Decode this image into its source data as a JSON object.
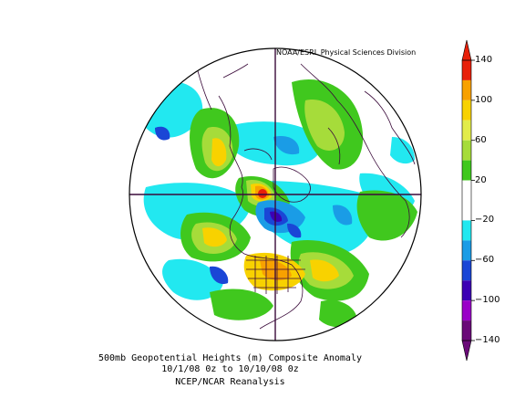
{
  "credit": "NOAA/ESRL Physical Sciences Division",
  "caption": {
    "line1": "500mb Geopotential Heights (m)   Composite Anomaly",
    "line2": "10/1/08 0z  to 10/10/08 0z",
    "line3": "NCEP/NCAR Reanalysis"
  },
  "colorbar": {
    "labels": [
      {
        "text": "140",
        "value": 140
      },
      {
        "text": "100",
        "value": 100
      },
      {
        "text": "60",
        "value": 60
      },
      {
        "text": "20",
        "value": 20
      },
      {
        "text": "−20",
        "value": -20
      },
      {
        "text": "−60",
        "value": -60
      },
      {
        "text": "−100",
        "value": -100
      },
      {
        "text": "−140",
        "value": -140
      }
    ],
    "bands": [
      {
        "min": 120,
        "max": 140,
        "color": "#e8200a"
      },
      {
        "min": 100,
        "max": 120,
        "color": "#f8a100"
      },
      {
        "min": 80,
        "max": 100,
        "color": "#f8d200"
      },
      {
        "min": 60,
        "max": 80,
        "color": "#e2ec4a"
      },
      {
        "min": 40,
        "max": 60,
        "color": "#a6dc3a"
      },
      {
        "min": 20,
        "max": 40,
        "color": "#40c81e"
      },
      {
        "min": -20,
        "max": 20,
        "color": "#ffffff"
      },
      {
        "min": -40,
        "max": -20,
        "color": "#22e8f0"
      },
      {
        "min": -60,
        "max": -40,
        "color": "#1a9ce6"
      },
      {
        "min": -80,
        "max": -60,
        "color": "#1a46d6"
      },
      {
        "min": -100,
        "max": -80,
        "color": "#3c00b4"
      },
      {
        "min": -120,
        "max": -100,
        "color": "#9a00c8"
      },
      {
        "min": -140,
        "max": -120,
        "color": "#6a0a78"
      }
    ]
  }
}
